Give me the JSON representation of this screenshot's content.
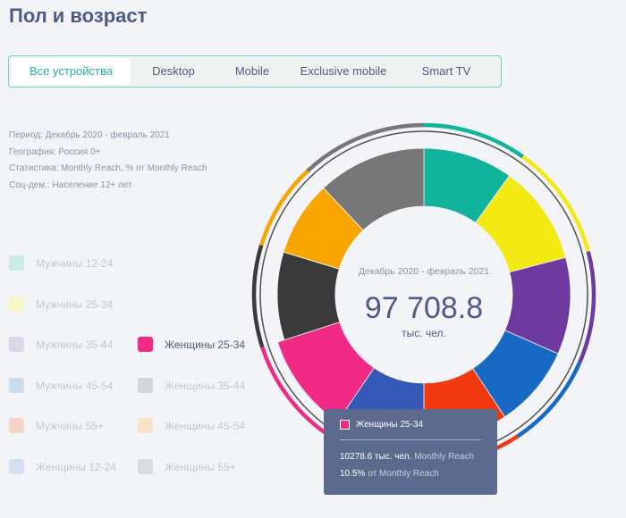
{
  "page": {
    "title": "Пол и возраст"
  },
  "tabs": [
    "Все устройства",
    "Desktop",
    "Mobile",
    "Exclusive mobile",
    "Smart TV"
  ],
  "active_tab": 0,
  "meta": [
    "Период: Декабрь 2020 - февраль 2021",
    "География: Россия 0+",
    "Статистика: Monthly Reach, % от Monthly Reach",
    "Соц-дем.: Население 12+ лет"
  ],
  "legend": [
    {
      "label": "Мужчины 12-24",
      "color": "#c9ebe6",
      "state": "dim"
    },
    {
      "label": "Мужчины 25-34",
      "color": "#f6f5c4",
      "state": "dim"
    },
    {
      "label": "Мужчины 35-44",
      "color": "#ddd6e8",
      "state": "dim"
    },
    {
      "label": "Мужчины 45-54",
      "color": "#cbdcee",
      "state": "dim"
    },
    {
      "label": "Мужчины 55+",
      "color": "#f6d3c9",
      "state": "dim"
    },
    {
      "label": "Женщины 12-24",
      "color": "#d6def2",
      "state": "dim"
    },
    {
      "label": "Женщины 25-34",
      "color": "#f02a85",
      "state": "active"
    },
    {
      "label": "Женщины 35-44",
      "color": "#d5d6d8",
      "state": "dim"
    },
    {
      "label": "Женщины 45-54",
      "color": "#f7e4c8",
      "state": "dim"
    },
    {
      "label": "Женщины 55+",
      "color": "#dadbdd",
      "state": "dim"
    }
  ],
  "chart_data": {
    "type": "pie",
    "center": {
      "period": "Декабрь 2020 - февраль 2021",
      "value": "97 708.8",
      "unit": "тыс. чел."
    },
    "series": [
      {
        "name": "Мужчины 12-24",
        "value": 9.9,
        "color": "#12b39c"
      },
      {
        "name": "Мужчины 25-34",
        "value": 11.0,
        "color": "#f4ea13"
      },
      {
        "name": "Мужчины 35-44",
        "value": 10.7,
        "color": "#6e3a9f"
      },
      {
        "name": "Мужчины 45-54",
        "value": 9.1,
        "color": "#1769c4"
      },
      {
        "name": "Мужчины 55+",
        "value": 9.3,
        "color": "#f2380f"
      },
      {
        "name": "Женщины 12-24",
        "value": 9.5,
        "color": "#3659b7"
      },
      {
        "name": "Женщины 25-34",
        "value": 10.5,
        "color": "#f02a85"
      },
      {
        "name": "Женщины 35-44",
        "value": 9.7,
        "color": "#3a3a3a"
      },
      {
        "name": "Женщины 45-54",
        "value": 8.3,
        "color": "#f8a500"
      },
      {
        "name": "Женщины 55+",
        "value": 12.0,
        "color": "#777777"
      }
    ],
    "highlighted": "Женщины 25-34"
  },
  "tooltip": {
    "label": "Женщины 25-34",
    "reach_value": "10278.6 тыс. чел.",
    "reach_sub": "Monthly Reach",
    "pct_value": "10.5%",
    "pct_sub": "от Monthly Reach",
    "color": "#f02a85"
  }
}
